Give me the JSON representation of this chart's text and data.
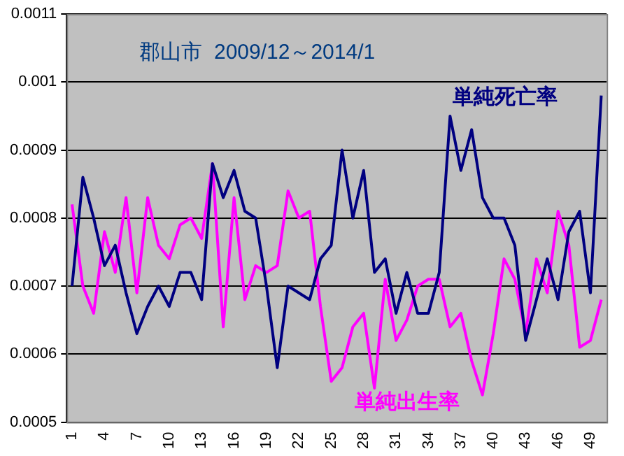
{
  "chart_data": {
    "type": "line",
    "title": "郡山市  2009/12～2014/1",
    "categories": [
      "1",
      null,
      null,
      "4",
      null,
      null,
      "7",
      null,
      null,
      "10",
      null,
      null,
      "13",
      null,
      null,
      "16",
      null,
      null,
      "19",
      null,
      null,
      "22",
      null,
      null,
      "25",
      null,
      null,
      "28",
      null,
      null,
      "31",
      null,
      null,
      "34",
      null,
      null,
      "37",
      null,
      null,
      "40",
      null,
      null,
      "43",
      null,
      null,
      "46",
      null,
      null,
      "49",
      null
    ],
    "series": [
      {
        "name": "単純死亡率",
        "color": "#000080",
        "values": [
          0.0007,
          0.00086,
          0.0008,
          0.00073,
          0.00076,
          0.00069,
          0.00063,
          0.00067,
          0.0007,
          0.00067,
          0.00072,
          0.00072,
          0.00068,
          0.00088,
          0.00083,
          0.00087,
          0.00081,
          0.0008,
          0.0007,
          0.00058,
          0.0007,
          0.00069,
          0.00068,
          0.00074,
          0.00076,
          0.0009,
          0.0008,
          0.00087,
          0.00072,
          0.00074,
          0.00066,
          0.00072,
          0.00066,
          0.00066,
          0.00072,
          0.00095,
          0.00087,
          0.00093,
          0.00083,
          0.0008,
          0.0008,
          0.00076,
          0.00062,
          0.00068,
          0.00074,
          0.00068,
          0.00078,
          0.00081,
          0.00069,
          0.00098
        ]
      },
      {
        "name": "単純出生率",
        "color": "#ff00ff",
        "values": [
          0.00082,
          0.0007,
          0.00066,
          0.00078,
          0.00072,
          0.00083,
          0.00069,
          0.00083,
          0.00076,
          0.00074,
          0.00079,
          0.0008,
          0.00077,
          0.00088,
          0.00064,
          0.00083,
          0.00068,
          0.00073,
          0.00072,
          0.00073,
          0.00084,
          0.0008,
          0.00081,
          0.00067,
          0.00056,
          0.00058,
          0.00064,
          0.00066,
          0.00055,
          0.00071,
          0.00062,
          0.00065,
          0.0007,
          0.00071,
          0.00071,
          0.00064,
          0.00066,
          0.00059,
          0.00054,
          0.00063,
          0.00074,
          0.00071,
          0.00063,
          0.00074,
          0.00069,
          0.00081,
          0.00076,
          0.00061,
          0.00062,
          0.00068
        ]
      }
    ],
    "ylim": [
      0.0005,
      0.0011
    ],
    "yticks": [
      0.0005,
      0.0006,
      0.0007,
      0.0008,
      0.0009,
      0.001,
      0.0011
    ],
    "grid": "y",
    "legend": false,
    "marker": "none",
    "line_style": "solid"
  }
}
